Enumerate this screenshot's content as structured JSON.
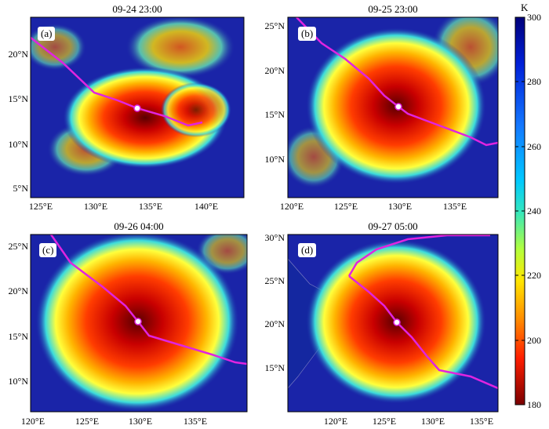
{
  "panels": [
    {
      "title": "09-24 23:00",
      "letter": "(a)",
      "lat_labels": [
        "20°N",
        "15°N",
        "10°N",
        "5°N"
      ],
      "lon_labels": [
        "125°E",
        "130°E",
        "135°E",
        "140°E"
      ]
    },
    {
      "title": "09-25 23:00",
      "letter": "(b)",
      "lat_labels": [
        "25°N",
        "20°N",
        "15°N",
        "10°N"
      ],
      "lon_labels": [
        "120°E",
        "125°E",
        "130°E",
        "135°E"
      ]
    },
    {
      "title": "09-26 04:00",
      "letter": "(c)",
      "lat_labels": [
        "25°N",
        "20°N",
        "15°N",
        "10°N"
      ],
      "lon_labels": [
        "120°E",
        "125°E",
        "130°E",
        "135°E"
      ]
    },
    {
      "title": "09-27 05:00",
      "letter": "(d)",
      "lat_labels": [
        "30°N",
        "25°N",
        "20°N",
        "15°N"
      ],
      "lon_labels": [
        "120°E",
        "125°E",
        "130°E",
        "135°E"
      ]
    }
  ],
  "colorbar": {
    "unit": "K",
    "ticks": [
      "300",
      "280",
      "260",
      "240",
      "220",
      "200",
      "180"
    ],
    "min": 180,
    "max": 300
  },
  "colors": {
    "track": "#e024e0",
    "cold_cloud": "#8b0000",
    "warm_background": "#1a24a8"
  }
}
